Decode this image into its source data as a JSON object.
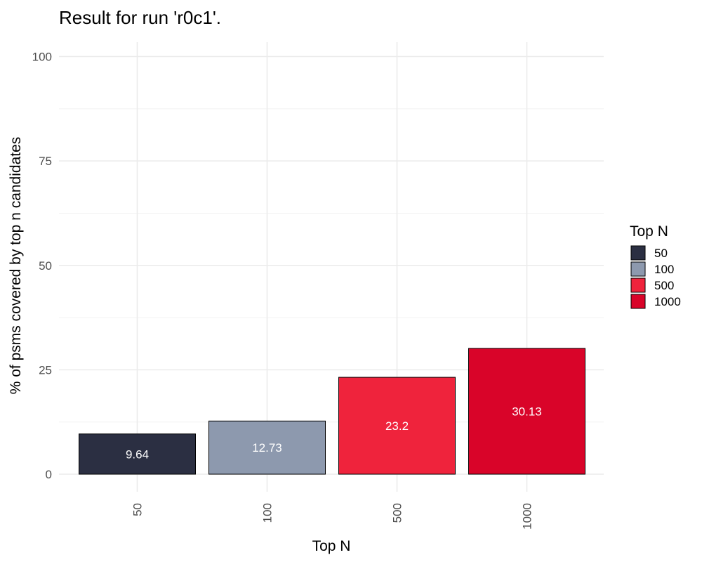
{
  "chart_data": {
    "type": "bar",
    "title": "Result for run 'r0c1'.",
    "xlabel": "Top N",
    "ylabel": "% of psms covered by top n candidates",
    "categories": [
      "50",
      "100",
      "500",
      "1000"
    ],
    "values": [
      9.64,
      12.73,
      23.2,
      30.13
    ],
    "value_labels": [
      "9.64",
      "12.73",
      "23.2",
      "30.13"
    ],
    "colors": [
      "#2b2f42",
      "#8d99ae",
      "#ef233c",
      "#d90429"
    ],
    "ylim": [
      0,
      100
    ],
    "yticks": [
      0,
      25,
      50,
      75,
      100
    ],
    "ytick_labels": [
      "0",
      "25",
      "50",
      "75",
      "100"
    ],
    "grid": true,
    "legend": {
      "title": "Top N",
      "position": "right",
      "entries": [
        "50",
        "100",
        "500",
        "1000"
      ]
    }
  }
}
